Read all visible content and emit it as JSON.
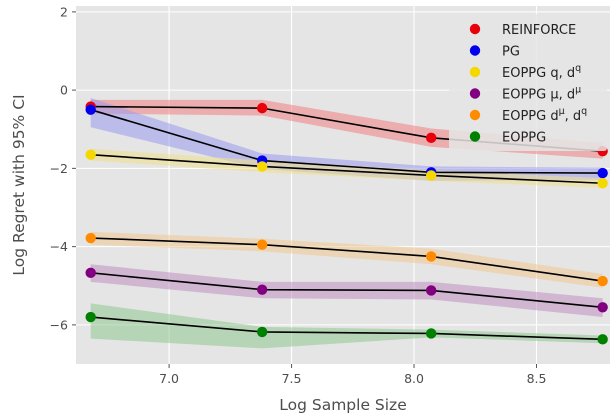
{
  "chart_data": {
    "type": "line",
    "xlabel": "Log Sample Size",
    "ylabel": "Log Regret with 95% CI",
    "xlim": [
      6.62,
      8.8
    ],
    "ylim": [
      -7.0,
      2.15
    ],
    "xticks": [
      7.0,
      7.5,
      8.0,
      8.5
    ],
    "xtick_labels": [
      "7.0",
      "7.5",
      "8.0",
      "8.5"
    ],
    "yticks": [
      2,
      0,
      -2,
      -4,
      -6
    ],
    "ytick_labels": [
      "2",
      "0",
      "−2",
      "−4",
      "−6"
    ],
    "grid": true,
    "legend_position": "top-right",
    "x": [
      6.68,
      7.38,
      8.07,
      8.77
    ],
    "series": [
      {
        "name": "REINFORCE",
        "label_main": "REINFORCE",
        "label_sup": "",
        "color": "#e8000b",
        "band_color": "#f08080",
        "values": [
          -0.42,
          -0.46,
          -1.22,
          -1.56
        ],
        "lower": [
          -0.6,
          -0.65,
          -1.45,
          -1.75
        ],
        "upper": [
          -0.25,
          -0.25,
          -0.98,
          -1.35
        ]
      },
      {
        "name": "PG",
        "label_main": "PG",
        "label_sup": "",
        "color": "#0000ee",
        "band_color": "#9a9af0",
        "values": [
          -0.5,
          -1.8,
          -2.1,
          -2.12
        ],
        "lower": [
          -0.95,
          -2.02,
          -2.32,
          -2.3
        ],
        "upper": [
          -0.2,
          -1.62,
          -1.95,
          -1.98
        ]
      },
      {
        "name": "EOPPG q, d^q",
        "label_main": "EOPPG q, d",
        "label_sup": "q",
        "color": "#f5d800",
        "band_color": "#f0e08a",
        "values": [
          -1.65,
          -1.95,
          -2.18,
          -2.38
        ],
        "lower": [
          -1.8,
          -2.1,
          -2.32,
          -2.5
        ],
        "upper": [
          -1.5,
          -1.8,
          -2.05,
          -2.25
        ]
      },
      {
        "name": "EOPPG μ, d^μ",
        "label_main": "EOPPG μ, d",
        "label_sup": "μ",
        "color": "#800080",
        "band_color": "#c090c0",
        "values": [
          -4.67,
          -5.1,
          -5.12,
          -5.55
        ],
        "lower": [
          -4.9,
          -5.32,
          -5.35,
          -5.8
        ],
        "upper": [
          -4.45,
          -4.9,
          -4.9,
          -5.32
        ]
      },
      {
        "name": "EOPPG d^μ, d^q",
        "label_main": "EOPPG d",
        "label_sup": "μ",
        "label_main2": ", d",
        "label_sup2": "q",
        "color": "#ff8c00",
        "band_color": "#f0c890",
        "values": [
          -3.78,
          -3.95,
          -4.25,
          -4.88
        ],
        "lower": [
          -3.95,
          -4.12,
          -4.45,
          -5.05
        ],
        "upper": [
          -3.62,
          -3.8,
          -4.05,
          -4.7
        ]
      },
      {
        "name": "EOPPG",
        "label_main": "EOPPG",
        "label_sup": "",
        "color": "#008000",
        "band_color": "#90c890",
        "values": [
          -5.8,
          -6.18,
          -6.22,
          -6.37
        ],
        "lower": [
          -6.35,
          -6.6,
          -6.32,
          -6.47
        ],
        "upper": [
          -5.45,
          -6.05,
          -6.12,
          -6.27
        ]
      }
    ]
  }
}
